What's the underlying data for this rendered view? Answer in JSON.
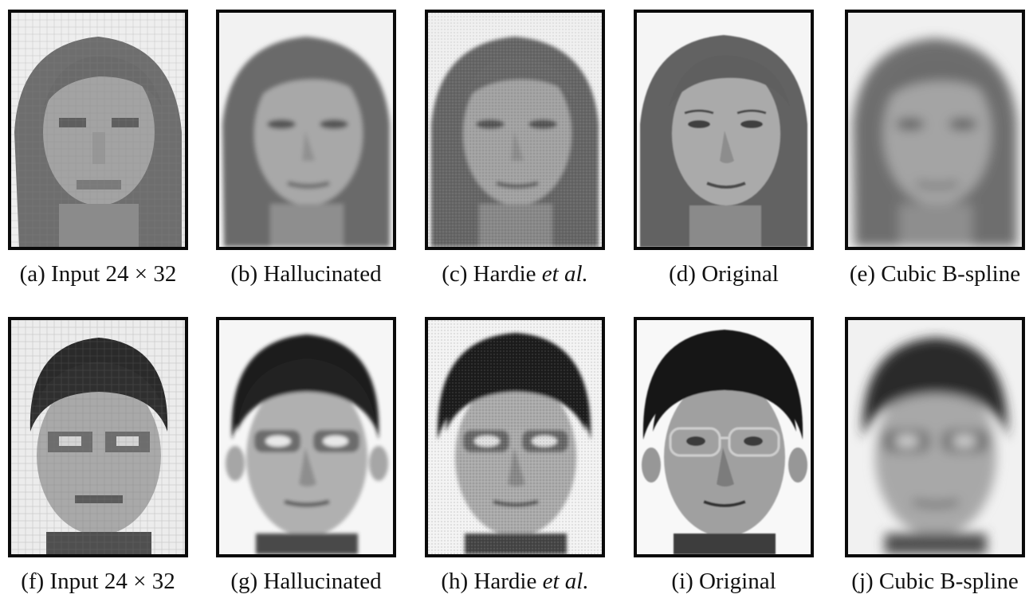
{
  "figure": {
    "rows": [
      {
        "subject": "woman",
        "panels": [
          {
            "id": "a",
            "caption": "(a) Input 24 × 32",
            "style": "pixelated"
          },
          {
            "id": "b",
            "caption": "(b) Hallucinated",
            "style": "smooth"
          },
          {
            "id": "c",
            "caption_prefix": "(c) Hardie ",
            "caption_italic": "et al.",
            "style": "noisy"
          },
          {
            "id": "d",
            "caption": "(d) Original",
            "style": "sharp"
          },
          {
            "id": "e",
            "caption": "(e) Cubic B-spline",
            "style": "blurred"
          }
        ]
      },
      {
        "subject": "man",
        "panels": [
          {
            "id": "f",
            "caption": "(f) Input 24 × 32",
            "style": "pixelated"
          },
          {
            "id": "g",
            "caption": "(g) Hallucinated",
            "style": "smooth"
          },
          {
            "id": "h",
            "caption_prefix": "(h) Hardie ",
            "caption_italic": "et al.",
            "style": "noisy"
          },
          {
            "id": "i",
            "caption": "(i) Original",
            "style": "sharp"
          },
          {
            "id": "j",
            "caption": "(j) Cubic B-spline",
            "style": "blurred"
          }
        ]
      }
    ]
  }
}
